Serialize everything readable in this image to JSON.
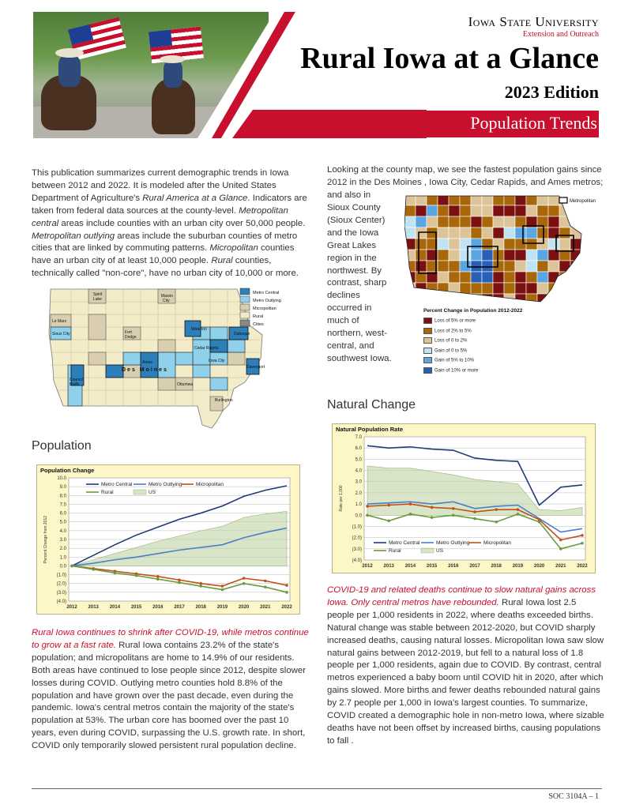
{
  "header": {
    "university": "Iowa State University",
    "unit": "Extension and Outreach",
    "title": "Rural Iowa at a Glance",
    "edition": "2023 Edition",
    "section": "Population Trends"
  },
  "intro": {
    "p1_a": "This publication summarizes current demographic trends in Iowa between 2012 and 2022. It is modeled after the United States Department of Agriculture's ",
    "p1_b": "Rural America at a Glance",
    "p1_c": ". Indicators are taken from federal data sources at the county-level. ",
    "p1_d": "Metropolitan central",
    "p1_e": " areas include counties with an urban city over 50,000 people. ",
    "p1_f": "Metropolitan outlying",
    "p1_g": " areas include the suburban counties of metro cities that are linked by commuting patterns. ",
    "p1_h": "Micropolitan",
    "p1_i": " counties have an urban city of at least 10,000 people. ",
    "p1_j": "Rural",
    "p1_k": " counties, technically called \"non-core\", have no urban city of 10,000 or more."
  },
  "map1": {
    "legend": [
      "Metro Central",
      "Metro Outlying",
      "Micropolitan",
      "Rural",
      "Cities"
    ],
    "colors": {
      "metro_central": "#2c7fb8",
      "metro_outlying": "#8fd0ea",
      "micropolitan": "#d9cfb0",
      "rural": "#f3ecc8",
      "cities": "#888888"
    },
    "cities": [
      "Spirit Lake",
      "Mason City",
      "Le Mars",
      "Sioux City",
      "Fort Dodge",
      "Waterloo",
      "Dubuque",
      "Ames",
      "Cedar Rapids",
      "Des Moines",
      "Iowa City",
      "Davenport",
      "Council Bluffs",
      "Ottumwa",
      "Burlington"
    ]
  },
  "population": {
    "heading": "Population",
    "body_red": "Rural Iowa continues to shrink after COVID-19, while metros continue to grow at a fast rate.",
    "body": " Rural Iowa contains 23.2% of the state's population; and micropolitans are home to 14.9% of our residents. Both areas have continued to lose people since 2012, despite slower losses during COVID. Outlying metro counties hold 8.8% of the population and have grown over the past decade, even during the pandemic. Iowa's central metros contain the majority of the state's population at 53%. The urban core has boomed over the past 10 years, even during COVID, surpassing the U.S. growth rate. In short, COVID only temporarily slowed persistent rural population decline."
  },
  "county_map": {
    "p_a": "Looking at the county map, we see the fastest population gains since 2012 in the Des Moines , Iowa City, Cedar Rapids, and Ames metros; and also in",
    "p_b": "Sioux County (Sioux Center) and the Iowa Great Lakes region in the northwest. By contrast, sharp declines occurred in much of northern, west-central, and southwest Iowa.",
    "metro_legend": "Metropolitan",
    "legend_title": "Percent Change in Population 2012-2022",
    "legend": [
      "Loss of 5% or more",
      "Loss of 2% to 5%",
      "Loss of 0 to 2%",
      "Gain of 0 to 5%",
      "Gain of 5% to 10%",
      "Gain of 10% or more"
    ],
    "legend_colors": [
      "#7a1010",
      "#a8680a",
      "#dcc398",
      "#bfe3f3",
      "#5aa6e3",
      "#2a5fb8"
    ]
  },
  "natural": {
    "heading": "Natural Change",
    "body_red": "COVID-19 and related deaths continue to slow natural gains across Iowa. Only central metros have rebounded.",
    "body": " Rural Iowa lost 2.5 people per 1,000 residents in 2022, where deaths exceeded births. Natural change was stable between 2012-2020, but COVID sharply increased deaths, causing natural losses. Micropolitan Iowa saw slow natural gains between 2012-2019, but fell to a natural loss of 1.8 people per 1,000 residents, again due to COVID. By contrast, central metros experienced a baby boom until COVID hit in 2020, after which gains slowed. More births and fewer deaths rebounded natural gains by 2.7 people per 1,000 in Iowa's largest counties. To summarize, COVID created a demographic hole in non-metro Iowa, where sizable deaths have not been offset by increased births, causing populations to fall ."
  },
  "chart_data": [
    {
      "type": "line",
      "title": "Population Change",
      "ylabel": "Percent Change from 2012",
      "x": [
        "2012",
        "2013",
        "2014",
        "2015",
        "2016",
        "2017",
        "2018",
        "2019",
        "2020",
        "2021",
        "2022"
      ],
      "ylim": [
        -4,
        10
      ],
      "yticks": [
        "10.0",
        "9.0",
        "8.0",
        "7.0",
        "6.0",
        "5.0",
        "4.0",
        "3.0",
        "2.0",
        "1.0",
        "0.0",
        "(1.0)",
        "(2.0)",
        "(3.0)",
        "(4.0)"
      ],
      "series": [
        {
          "name": "Metro Central",
          "color": "#1f3b73",
          "values": [
            0,
            1.2,
            2.4,
            3.5,
            4.4,
            5.3,
            6.0,
            6.8,
            7.9,
            8.6,
            9.1
          ]
        },
        {
          "name": "Metro Outlying",
          "color": "#4a7fc8",
          "values": [
            0,
            0.3,
            0.7,
            1.0,
            1.4,
            1.8,
            2.1,
            2.4,
            3.2,
            3.8,
            4.3
          ]
        },
        {
          "name": "Micropolitan",
          "color": "#c0501c",
          "values": [
            0,
            -0.3,
            -0.6,
            -0.9,
            -1.2,
            -1.6,
            -2.0,
            -2.3,
            -1.4,
            -1.7,
            -2.2
          ]
        },
        {
          "name": "Rural",
          "color": "#6a9a3a",
          "values": [
            0,
            -0.4,
            -0.8,
            -1.1,
            -1.5,
            -1.9,
            -2.3,
            -2.7,
            -2.0,
            -2.4,
            -3.0
          ]
        },
        {
          "name": "US",
          "color": "#b9cf9a",
          "type": "area",
          "values": [
            0,
            0.7,
            1.4,
            2.1,
            2.8,
            3.4,
            4.0,
            4.5,
            5.5,
            5.9,
            6.2
          ]
        }
      ]
    },
    {
      "type": "line",
      "title": "Natural Population Rate",
      "ylabel": "Rate per 1,000",
      "x": [
        "2012",
        "2013",
        "2014",
        "2015",
        "2016",
        "2017",
        "2018",
        "2019",
        "2020",
        "2021",
        "2022"
      ],
      "ylim": [
        -4,
        7
      ],
      "yticks": [
        "7.0",
        "6.0",
        "5.0",
        "4.0",
        "3.0",
        "2.0",
        "1.0",
        "0.0",
        "(1.0)",
        "(2.0)",
        "(3.0)",
        "(4.0)"
      ],
      "series": [
        {
          "name": "Metro Central",
          "color": "#1f3b73",
          "values": [
            6.2,
            6.0,
            6.1,
            5.9,
            5.8,
            5.1,
            4.9,
            4.8,
            0.9,
            2.5,
            2.7
          ]
        },
        {
          "name": "Metro Outlying",
          "color": "#4a7fc8",
          "values": [
            1.0,
            1.1,
            1.2,
            1.0,
            1.2,
            0.6,
            0.8,
            0.9,
            -0.3,
            -1.5,
            -1.2
          ]
        },
        {
          "name": "Micropolitan",
          "color": "#c0501c",
          "values": [
            0.8,
            0.9,
            1.0,
            0.7,
            0.6,
            0.3,
            0.5,
            0.5,
            -0.4,
            -2.2,
            -1.8
          ]
        },
        {
          "name": "Rural",
          "color": "#6a9a3a",
          "values": [
            0.0,
            -0.5,
            0.1,
            -0.2,
            0.0,
            -0.3,
            -0.6,
            0.1,
            -0.6,
            -3.0,
            -2.5
          ]
        },
        {
          "name": "US",
          "color": "#b9cf9a",
          "type": "area",
          "values": [
            4.4,
            4.2,
            4.2,
            3.9,
            3.6,
            3.2,
            3.0,
            2.8,
            0.5,
            0.4,
            0.7
          ]
        }
      ]
    }
  ],
  "footer": {
    "page": "SOC 3104A – 1"
  }
}
